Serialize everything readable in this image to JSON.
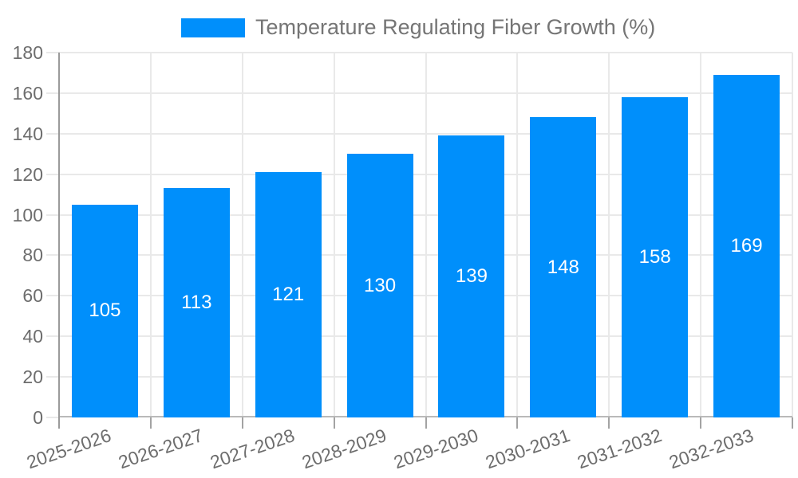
{
  "chart_data": {
    "type": "bar",
    "legend_label": "Temperature Regulating Fiber Growth (%)",
    "categories": [
      "2025-2026",
      "2026-2027",
      "2027-2028",
      "2028-2029",
      "2029-2030",
      "2030-2031",
      "2031-2032",
      "2032-2033"
    ],
    "values": [
      105,
      113,
      121,
      130,
      139,
      148,
      158,
      169
    ],
    "xlabel": "",
    "ylabel": "",
    "ylim": [
      0,
      180
    ],
    "ytick_step": 20,
    "ytick_labels": [
      "0",
      "20",
      "40",
      "60",
      "80",
      "100",
      "120",
      "140",
      "160",
      "180"
    ],
    "grid": "horizontal and vertical",
    "legend_position": "top",
    "value_labels_inside_bars": true,
    "colors": {
      "bar": "#008FFB",
      "grid": "#e9e9e9",
      "axis_light": "#b9b9b9",
      "axis_dark": "#9a9a9a",
      "tick": "#a3a3a3",
      "tick_label": "#6d6d6d",
      "legend_text": "#757575",
      "value_label": "#ffffff",
      "background": "#ffffff"
    }
  }
}
